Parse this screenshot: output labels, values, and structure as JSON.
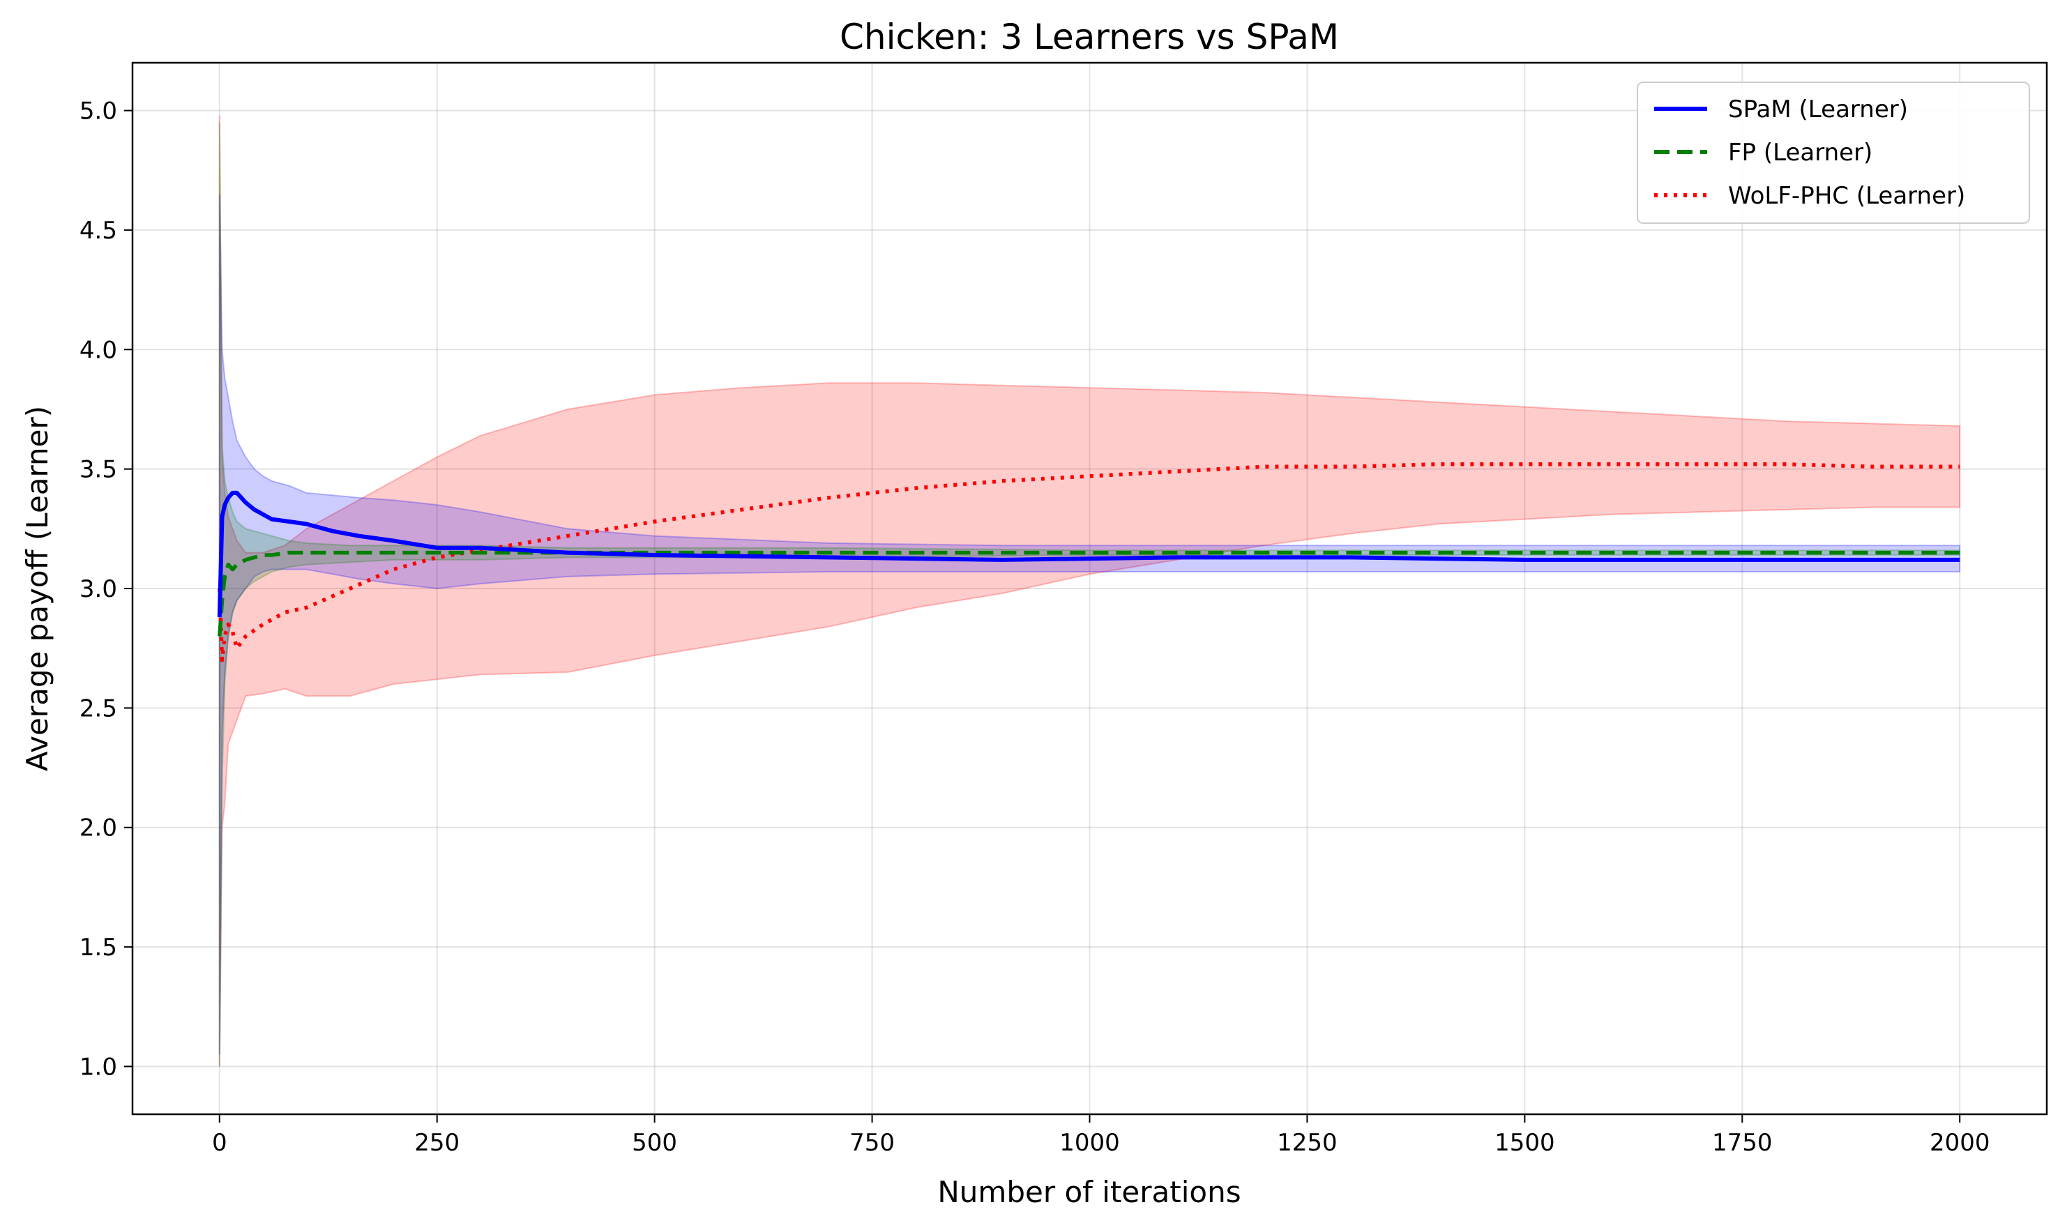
{
  "chart_data": {
    "type": "line",
    "title": "Chicken: 3 Learners vs SPaM",
    "xlabel": "Number of iterations",
    "ylabel": "Average payoff (Learner)",
    "xlim": [
      -100,
      2100
    ],
    "ylim": [
      0.8,
      5.2
    ],
    "xticks": [
      0,
      250,
      500,
      750,
      1000,
      1250,
      1500,
      1750,
      2000
    ],
    "xtick_labels": [
      "0",
      "250",
      "500",
      "750",
      "1000",
      "1250",
      "1500",
      "1750",
      "2000"
    ],
    "yticks": [
      1.0,
      1.5,
      2.0,
      2.5,
      3.0,
      3.5,
      4.0,
      4.5,
      5.0
    ],
    "ytick_labels": [
      "1.0",
      "1.5",
      "2.0",
      "2.5",
      "3.0",
      "3.5",
      "4.0",
      "4.5",
      "5.0"
    ],
    "grid": true,
    "legend_position": "top-right",
    "series": [
      {
        "name": "SPaM (Learner)",
        "color": "#0000ff",
        "line_style": "solid",
        "x": [
          0,
          3,
          6,
          10,
          15,
          20,
          30,
          40,
          50,
          60,
          80,
          100,
          130,
          160,
          200,
          250,
          300,
          400,
          500,
          700,
          900,
          1100,
          1300,
          1500,
          1700,
          1900,
          2000
        ],
        "y": [
          2.88,
          3.3,
          3.35,
          3.38,
          3.4,
          3.4,
          3.36,
          3.33,
          3.31,
          3.29,
          3.28,
          3.27,
          3.24,
          3.22,
          3.2,
          3.17,
          3.17,
          3.15,
          3.14,
          3.13,
          3.12,
          3.13,
          3.13,
          3.12,
          3.12,
          3.12,
          3.12
        ],
        "lower": [
          1.05,
          2.4,
          2.65,
          2.8,
          2.9,
          2.95,
          3.0,
          3.05,
          3.07,
          3.08,
          3.08,
          3.08,
          3.06,
          3.04,
          3.02,
          3.0,
          3.02,
          3.05,
          3.06,
          3.07,
          3.07,
          3.07,
          3.07,
          3.07,
          3.07,
          3.07,
          3.07
        ],
        "upper": [
          4.65,
          4.0,
          3.88,
          3.8,
          3.7,
          3.62,
          3.55,
          3.5,
          3.47,
          3.45,
          3.43,
          3.4,
          3.39,
          3.38,
          3.37,
          3.35,
          3.32,
          3.25,
          3.22,
          3.19,
          3.18,
          3.18,
          3.18,
          3.18,
          3.18,
          3.18,
          3.18
        ]
      },
      {
        "name": "FP (Learner)",
        "color": "#008000",
        "line_style": "dashed",
        "x": [
          0,
          3,
          6,
          10,
          15,
          20,
          30,
          40,
          50,
          60,
          80,
          100,
          150,
          200,
          300,
          400,
          500,
          700,
          1000,
          1500,
          2000
        ],
        "y": [
          2.8,
          2.95,
          3.05,
          3.1,
          3.08,
          3.1,
          3.12,
          3.13,
          3.14,
          3.14,
          3.15,
          3.15,
          3.15,
          3.15,
          3.15,
          3.15,
          3.15,
          3.15,
          3.15,
          3.15,
          3.15
        ],
        "lower": [
          1.0,
          2.2,
          2.6,
          2.8,
          2.9,
          2.95,
          3.0,
          3.03,
          3.05,
          3.07,
          3.09,
          3.1,
          3.11,
          3.12,
          3.12,
          3.13,
          3.13,
          3.13,
          3.14,
          3.14,
          3.14
        ],
        "upper": [
          4.95,
          3.6,
          3.45,
          3.38,
          3.32,
          3.28,
          3.25,
          3.24,
          3.23,
          3.22,
          3.2,
          3.19,
          3.18,
          3.18,
          3.18,
          3.17,
          3.17,
          3.17,
          3.16,
          3.16,
          3.16
        ]
      },
      {
        "name": "WoLF-PHC (Learner)",
        "color": "#ff0000",
        "line_style": "dotted",
        "x": [
          0,
          3,
          6,
          10,
          15,
          20,
          30,
          50,
          75,
          100,
          150,
          200,
          250,
          300,
          400,
          500,
          600,
          700,
          800,
          900,
          1000,
          1100,
          1200,
          1300,
          1400,
          1500,
          1600,
          1700,
          1800,
          1900,
          2000
        ],
        "y": [
          3.0,
          2.7,
          2.8,
          2.85,
          2.82,
          2.75,
          2.8,
          2.85,
          2.9,
          2.92,
          3.0,
          3.08,
          3.13,
          3.16,
          3.22,
          3.28,
          3.33,
          3.38,
          3.42,
          3.45,
          3.47,
          3.49,
          3.51,
          3.51,
          3.52,
          3.52,
          3.52,
          3.52,
          3.52,
          3.51,
          3.51
        ],
        "lower": [
          1.0,
          2.0,
          2.1,
          2.35,
          2.4,
          2.45,
          2.55,
          2.56,
          2.58,
          2.55,
          2.55,
          2.6,
          2.62,
          2.64,
          2.65,
          2.72,
          2.78,
          2.84,
          2.92,
          2.98,
          3.06,
          3.12,
          3.18,
          3.23,
          3.27,
          3.29,
          3.31,
          3.32,
          3.33,
          3.34,
          3.34
        ],
        "upper": [
          4.98,
          3.55,
          3.4,
          3.3,
          3.25,
          3.2,
          3.15,
          3.15,
          3.18,
          3.25,
          3.35,
          3.45,
          3.55,
          3.64,
          3.75,
          3.81,
          3.84,
          3.86,
          3.86,
          3.85,
          3.84,
          3.83,
          3.82,
          3.8,
          3.78,
          3.76,
          3.74,
          3.72,
          3.7,
          3.69,
          3.68
        ]
      }
    ]
  }
}
